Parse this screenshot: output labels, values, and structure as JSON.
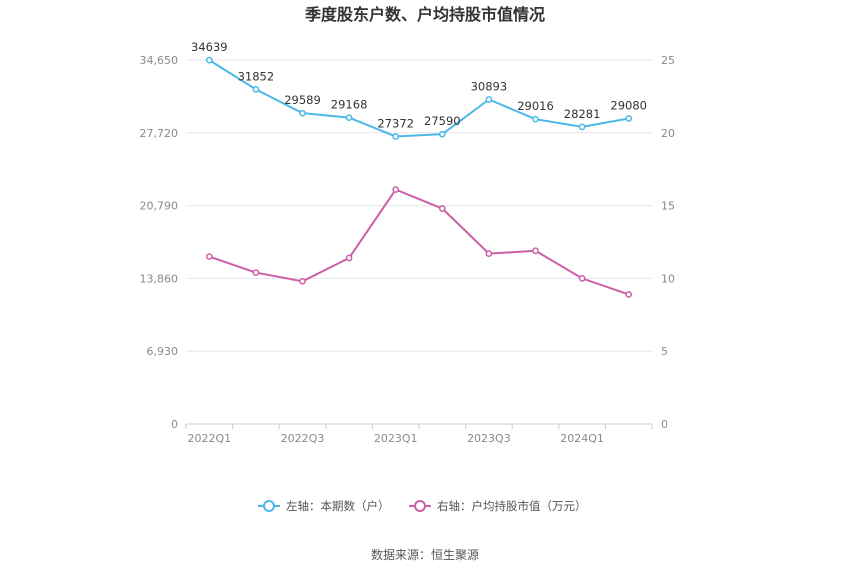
{
  "chart_data": {
    "type": "line",
    "title": "季度股东户数、户均持股市值情况",
    "source": "数据来源：恒生聚源",
    "x": [
      "2022Q1",
      "2022Q2",
      "2022Q3",
      "2022Q4",
      "2023Q1",
      "2023Q2",
      "2023Q3",
      "2023Q4",
      "2024Q1",
      "2024Q2"
    ],
    "x_tick_labels": [
      "2022Q1",
      "2022Q3",
      "2023Q1",
      "2023Q3",
      "2024Q1"
    ],
    "y_left": {
      "ylim": [
        0,
        34650
      ],
      "ticks": [
        "0",
        "6,930",
        "13,860",
        "20,790",
        "27,720",
        "34,650"
      ]
    },
    "y_right": {
      "ylim": [
        0,
        25
      ],
      "ticks": [
        "0",
        "5",
        "10",
        "15",
        "20",
        "25"
      ]
    },
    "grid": true,
    "legend_position": "bottom",
    "series": [
      {
        "name": "左轴：本期数（户）",
        "axis": "left",
        "color": "#4cb8e8",
        "values": [
          34639,
          31852,
          29589,
          29168,
          27372,
          27590,
          30893,
          29016,
          28281,
          29080
        ],
        "data_labels": [
          "34639",
          "31852",
          "29589",
          "29168",
          "27372",
          "27590",
          "30893",
          "29016",
          "28281",
          "29080"
        ]
      },
      {
        "name": "右轴：户均持股市值（万元）",
        "axis": "right",
        "color": "#cc5fa6",
        "values": [
          11.5,
          10.4,
          9.8,
          11.4,
          16.1,
          14.8,
          11.7,
          11.9,
          10.0,
          8.9
        ]
      }
    ]
  }
}
